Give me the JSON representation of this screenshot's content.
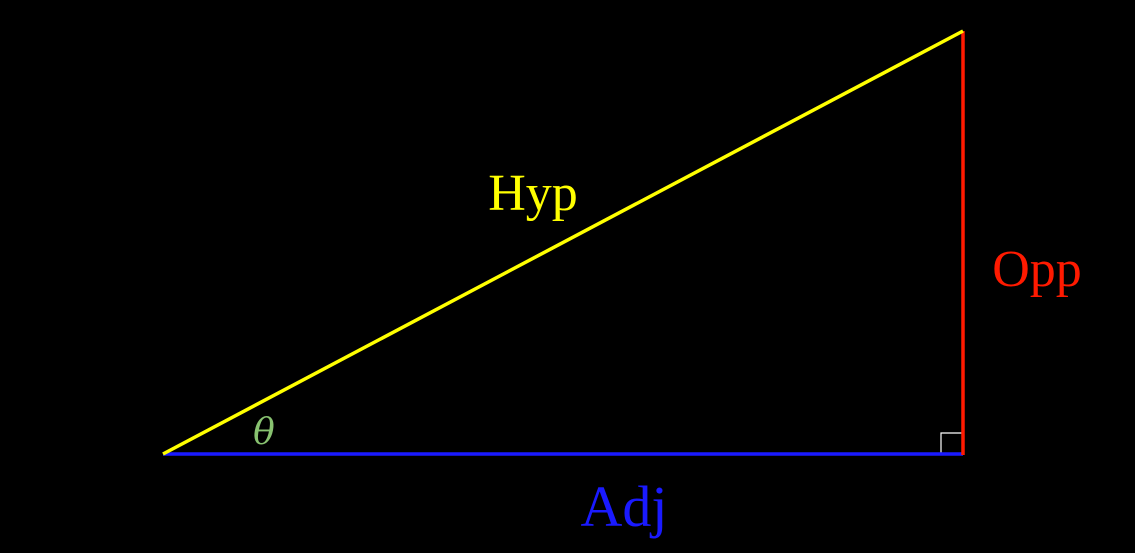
{
  "diagram": {
    "background": "#000000",
    "sides": {
      "hypotenuse": {
        "label": "Hyp",
        "color": "#ffff00"
      },
      "opposite": {
        "label": "Opp",
        "color": "#ff1a00"
      },
      "adjacent": {
        "label": "Adj",
        "color": "#1a1aff"
      }
    },
    "angle": {
      "label": "θ",
      "color": "#88c270"
    },
    "right_angle_marker": {
      "color": "#ffffff"
    }
  }
}
